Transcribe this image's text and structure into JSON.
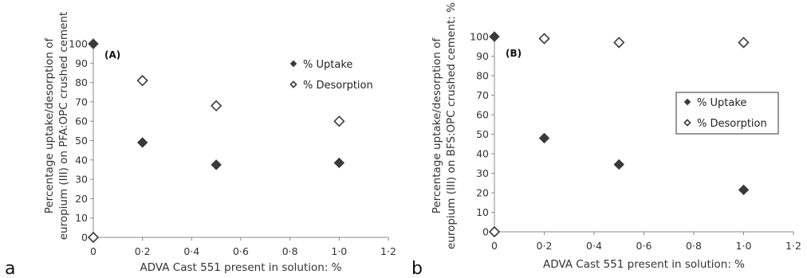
{
  "figure_letters": [
    "a",
    "b"
  ],
  "chart_data": [
    {
      "type": "scatter",
      "panel_label": "(A)",
      "xlabel": "ADVA Cast 551 present in solution: %",
      "ylabel": "Percentage uptake/desorption of europium (III) on PFA:OPC crushed cement",
      "xlim": [
        0,
        1.2
      ],
      "ylim": [
        0,
        100
      ],
      "x_ticks": [
        "0",
        "0·2",
        "0·4",
        "0·6",
        "0·8",
        "1·0",
        "1·2"
      ],
      "y_ticks": [
        "0",
        "10",
        "20",
        "30",
        "40",
        "50",
        "60",
        "70",
        "80",
        "90",
        "100"
      ],
      "grid": false,
      "legend_position": "top-right",
      "legend_boxed": false,
      "series": [
        {
          "name": "% Uptake",
          "marker": "filled-diamond",
          "color": "#3a3a3a",
          "points": [
            {
              "x": 0,
              "y": 100
            },
            {
              "x": 0.2,
              "y": 49
            },
            {
              "x": 0.5,
              "y": 37.5
            },
            {
              "x": 1.0,
              "y": 38.5
            }
          ]
        },
        {
          "name": "% Desorption",
          "marker": "open-diamond",
          "color": "#3a3a3a",
          "points": [
            {
              "x": 0,
              "y": 0
            },
            {
              "x": 0.2,
              "y": 81
            },
            {
              "x": 0.5,
              "y": 68
            },
            {
              "x": 1.0,
              "y": 60
            }
          ]
        }
      ]
    },
    {
      "type": "scatter",
      "panel_label": "(B)",
      "xlabel": "ADVA Cast 551 present in solution: %",
      "ylabel": "Percentage uptake/desorption of europium (III) on BFS:OPC crushed cement: %",
      "xlim": [
        0,
        1.2
      ],
      "ylim": [
        0,
        100
      ],
      "x_ticks": [
        "0",
        "0·2",
        "0·4",
        "0·6",
        "0·8",
        "1·0",
        "1·2"
      ],
      "y_ticks": [
        "0",
        "10",
        "20",
        "30",
        "40",
        "50",
        "60",
        "70",
        "80",
        "90",
        "100"
      ],
      "grid": false,
      "legend_position": "right",
      "legend_boxed": true,
      "series": [
        {
          "name": "% Uptake",
          "marker": "filled-diamond",
          "color": "#3a3a3a",
          "points": [
            {
              "x": 0,
              "y": 100
            },
            {
              "x": 0.2,
              "y": 48
            },
            {
              "x": 0.5,
              "y": 34.5
            },
            {
              "x": 1.0,
              "y": 21.5
            }
          ]
        },
        {
          "name": "% Desorption",
          "marker": "open-diamond",
          "color": "#3a3a3a",
          "points": [
            {
              "x": 0,
              "y": 0
            },
            {
              "x": 0.2,
              "y": 99
            },
            {
              "x": 0.5,
              "y": 97
            },
            {
              "x": 1.0,
              "y": 97
            }
          ]
        }
      ]
    }
  ]
}
